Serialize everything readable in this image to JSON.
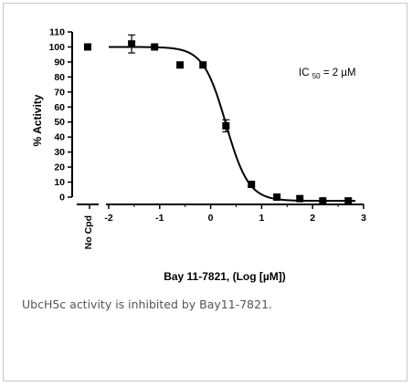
{
  "figure": {
    "caption": "UbcH5c activity is inhibited by Bay11-7821."
  },
  "chart_data": {
    "type": "scatter",
    "xlabel": "Bay 11-7821, (Log [µM])",
    "ylabel": "% Activity",
    "xlim": [
      -2,
      3
    ],
    "ylim": [
      0,
      110
    ],
    "x_ticks": [
      -2,
      -1,
      0,
      1,
      2,
      3
    ],
    "y_ticks": [
      0,
      10,
      20,
      30,
      40,
      50,
      60,
      70,
      80,
      90,
      100,
      110
    ],
    "no_cpd_label": "No Cpd",
    "no_cpd_value": 100,
    "annotation": {
      "label": "IC",
      "subscript": "50",
      "value_text": " = 2 µM"
    },
    "series": [
      {
        "points": [
          {
            "x": -1.55,
            "y": 102,
            "err": 6
          },
          {
            "x": -1.1,
            "y": 100,
            "err": 0
          },
          {
            "x": -0.6,
            "y": 88,
            "err": 0
          },
          {
            "x": -0.15,
            "y": 88,
            "err": 0
          },
          {
            "x": 0.3,
            "y": 47.5,
            "err": 4
          },
          {
            "x": 0.8,
            "y": 8.5,
            "err": 0
          },
          {
            "x": 1.3,
            "y": 0,
            "err": 0
          },
          {
            "x": 1.75,
            "y": -1,
            "err": 0
          },
          {
            "x": 2.2,
            "y": -2.5,
            "err": 0
          },
          {
            "x": 2.7,
            "y": -2.5,
            "err": 0
          }
        ]
      }
    ],
    "fit": {
      "type": "sigmoid",
      "top": 100,
      "bottom": -2.5,
      "log_ic50": 0.3,
      "hill": 1.95
    }
  }
}
